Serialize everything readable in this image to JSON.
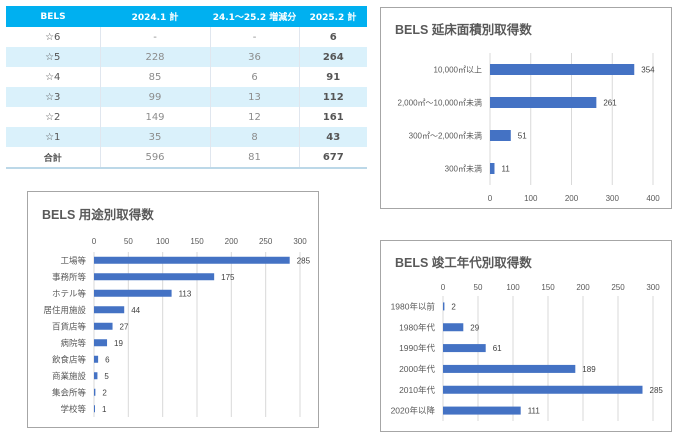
{
  "table": {
    "headers": [
      "BELS",
      "2024.1 計",
      "24.1～25.2 増減分",
      "2025.2 計"
    ],
    "rows": [
      [
        "☆6",
        "-",
        "-",
        "6"
      ],
      [
        "☆5",
        "228",
        "36",
        "264"
      ],
      [
        "☆4",
        "85",
        "6",
        "91"
      ],
      [
        "☆3",
        "99",
        "13",
        "112"
      ],
      [
        "☆2",
        "149",
        "12",
        "161"
      ],
      [
        "☆1",
        "35",
        "8",
        "43"
      ],
      [
        "合計",
        "596",
        "81",
        "677"
      ]
    ],
    "header_color": "#00b0f0",
    "stripe_color": "#daf1fb"
  },
  "chart_data": [
    {
      "id": "floor",
      "type": "bar",
      "orientation": "horizontal",
      "title": "BELS 延床面積別取得数",
      "categories": [
        "10,000㎡以上",
        "2,000㎡～10,000㎡未満",
        "300㎡～2,000㎡未満",
        "300㎡未満"
      ],
      "values": [
        354,
        261,
        51,
        11
      ],
      "xlim": [
        0,
        400
      ],
      "ticks": [
        0,
        100,
        200,
        300,
        400
      ],
      "tick_position": "bottom",
      "grid": true,
      "bar_color": "#4472c4",
      "data_labels": true
    },
    {
      "id": "use",
      "type": "bar",
      "orientation": "horizontal",
      "title": "BELS 用途別取得数",
      "categories": [
        "工場等",
        "事務所等",
        "ホテル等",
        "居住用施設",
        "百貨店等",
        "病院等",
        "飲食店等",
        "商業施設",
        "集会所等",
        "学校等"
      ],
      "values": [
        285,
        175,
        113,
        44,
        27,
        19,
        6,
        5,
        2,
        1
      ],
      "xlim": [
        0,
        300
      ],
      "ticks": [
        0,
        50,
        100,
        150,
        200,
        250,
        300
      ],
      "tick_position": "top",
      "grid": true,
      "bar_color": "#4472c4",
      "data_labels": true
    },
    {
      "id": "year",
      "type": "bar",
      "orientation": "horizontal",
      "title": "BELS 竣工年代別取得数",
      "categories": [
        "1980年以前",
        "1980年代",
        "1990年代",
        "2000年代",
        "2010年代",
        "2020年以降"
      ],
      "values": [
        2,
        29,
        61,
        189,
        285,
        111
      ],
      "xlim": [
        0,
        300
      ],
      "ticks": [
        0,
        50,
        100,
        150,
        200,
        250,
        300
      ],
      "tick_position": "top",
      "grid": true,
      "bar_color": "#4472c4",
      "data_labels": true
    }
  ]
}
